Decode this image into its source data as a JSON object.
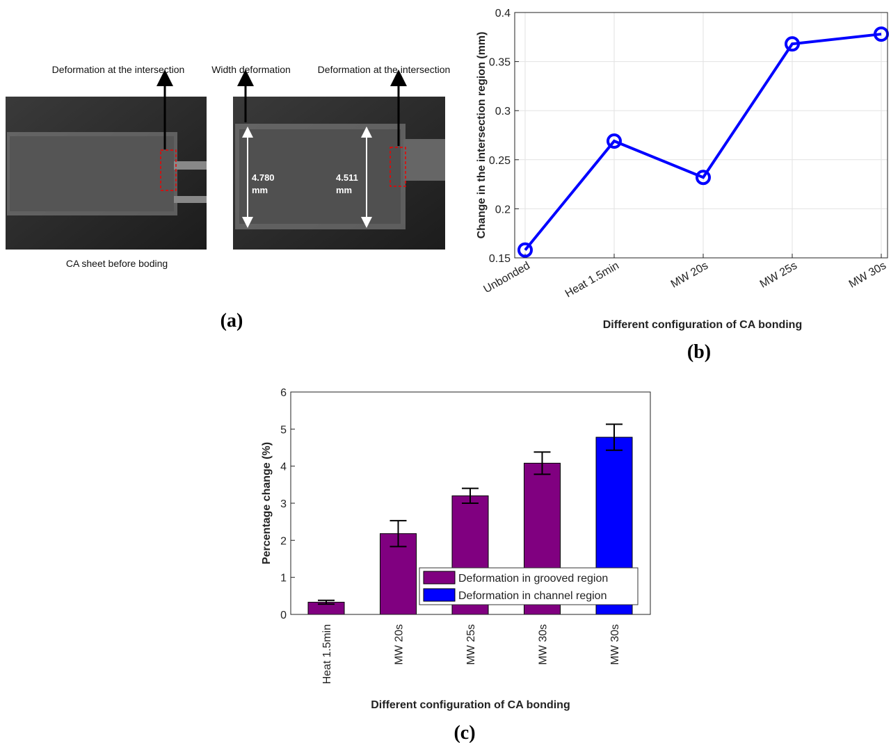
{
  "panel_a": {
    "label": "(a)",
    "annotations": [
      "Deformation at the intersection",
      "Width deformation",
      "Deformation at the intersection"
    ],
    "measures": [
      [
        "4.780",
        "mm"
      ],
      [
        "4.511",
        "mm"
      ]
    ],
    "caption": "CA sheet before boding"
  },
  "chart_data": [
    {
      "type": "line",
      "panel": "(b)",
      "ylabel": "Change in the intersection region (mm)",
      "xlabel": "Different configuration of CA bonding",
      "categories": [
        "Unbonded",
        "Heat 1.5min",
        "MW 20s",
        "MW 25s",
        "MW 30s"
      ],
      "values": [
        0.158,
        0.269,
        0.232,
        0.368,
        0.378
      ],
      "color": "#0000ff",
      "ylim": [
        0.15,
        0.4
      ],
      "yticks": [
        0.15,
        0.2,
        0.25,
        0.3,
        0.35,
        0.4
      ],
      "grid": true
    },
    {
      "type": "bar",
      "panel": "(c)",
      "ylabel": "Percentage change (%)",
      "xlabel": "Different configuration of CA bonding",
      "categories": [
        "Heat 1.5min",
        "MW 20s",
        "MW 25s",
        "MW 30s",
        "MW 30s"
      ],
      "series": [
        {
          "name": "Deformation in grooved region",
          "color": "#800080",
          "values": [
            0.33,
            2.18,
            3.2,
            4.08,
            null
          ],
          "errors": [
            0.05,
            0.35,
            0.2,
            0.3,
            null
          ]
        },
        {
          "name": "Deformation in channel region",
          "color": "#0000ff",
          "values": [
            null,
            null,
            null,
            null,
            4.78
          ],
          "errors": [
            null,
            null,
            null,
            null,
            0.35
          ]
        }
      ],
      "ylim": [
        0,
        6
      ],
      "yticks": [
        0,
        1,
        2,
        3,
        4,
        5,
        6
      ],
      "grid": false,
      "legend": "lower right"
    }
  ]
}
